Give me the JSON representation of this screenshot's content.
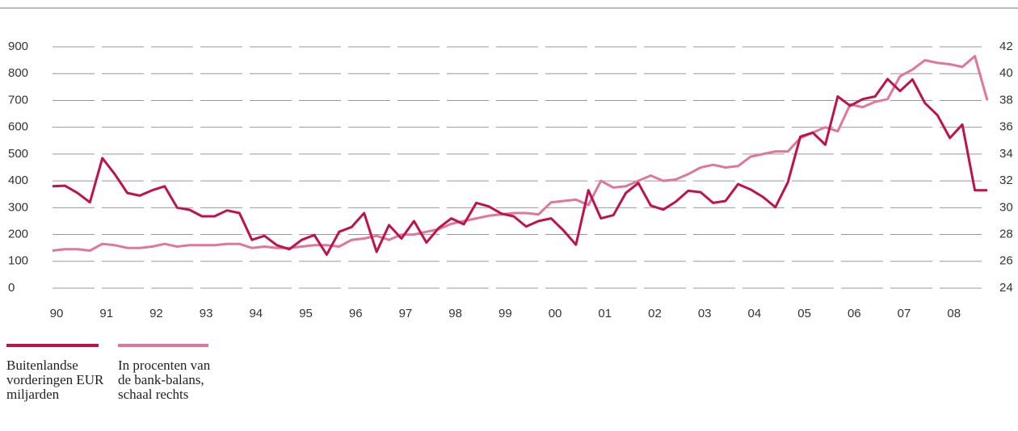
{
  "chart_data": {
    "type": "line",
    "categories": [
      "90",
      null,
      null,
      null,
      "91",
      null,
      null,
      null,
      "92",
      null,
      null,
      null,
      "93",
      null,
      null,
      null,
      "94",
      null,
      null,
      null,
      "95",
      null,
      null,
      null,
      "96",
      null,
      null,
      null,
      "97",
      null,
      null,
      null,
      "98",
      null,
      null,
      null,
      "99",
      null,
      null,
      null,
      "00",
      null,
      null,
      null,
      "01",
      null,
      null,
      null,
      "02",
      null,
      null,
      null,
      "03",
      null,
      null,
      null,
      "04",
      null,
      null,
      null,
      "05",
      null,
      null,
      null,
      "06",
      null,
      null,
      null,
      "07",
      null,
      null,
      null,
      "08",
      null,
      null,
      null
    ],
    "series": [
      {
        "name": "Buitenlandse vorderingen EUR miljarden",
        "color": "#c0114f",
        "values": [
          380,
          382,
          355,
          320,
          485,
          425,
          355,
          345,
          365,
          380,
          300,
          292,
          268,
          268,
          290,
          280,
          180,
          195,
          160,
          145,
          180,
          198,
          125,
          210,
          228,
          280,
          135,
          235,
          185,
          250,
          170,
          225,
          260,
          238,
          318,
          305,
          278,
          268,
          230,
          250,
          260,
          215,
          162,
          365,
          260,
          272,
          355,
          392,
          308,
          293,
          322,
          363,
          358,
          318,
          325,
          388,
          368,
          340,
          302,
          395,
          565,
          580,
          535,
          715,
          680,
          705,
          715,
          780,
          735,
          778,
          690,
          645,
          560,
          610,
          365,
          365
        ]
      },
      {
        "name": "In procenten van de bank-balans, schaal rechts",
        "color": "#e07799",
        "axis": "y2",
        "values": [
          26.8,
          26.9,
          26.9,
          26.8,
          27.3,
          27.2,
          27.0,
          27.0,
          27.1,
          27.3,
          27.1,
          27.2,
          27.2,
          27.2,
          27.3,
          27.3,
          27.0,
          27.1,
          27.0,
          27.0,
          27.1,
          27.2,
          27.2,
          27.1,
          27.6,
          27.7,
          27.9,
          27.6,
          28.0,
          28.0,
          28.2,
          28.4,
          28.8,
          29.0,
          29.2,
          29.4,
          29.5,
          29.6,
          29.6,
          29.5,
          30.4,
          30.5,
          30.6,
          30.2,
          32.0,
          31.5,
          31.6,
          32.0,
          32.4,
          32.0,
          32.1,
          32.5,
          33.0,
          33.2,
          33.0,
          33.1,
          33.8,
          34.0,
          34.2,
          34.2,
          35.2,
          35.6,
          36.0,
          35.7,
          37.7,
          37.5,
          37.9,
          38.1,
          39.8,
          40.3,
          41.0,
          40.8,
          40.7,
          40.5,
          41.3,
          38.0
        ]
      }
    ],
    "ylim": [
      0,
      900
    ],
    "yticks": [
      0,
      100,
      200,
      300,
      400,
      500,
      600,
      700,
      800,
      900
    ],
    "y2lim": [
      24,
      42
    ],
    "y2ticks": [
      24,
      26,
      28,
      30,
      32,
      34,
      36,
      38,
      40,
      42
    ],
    "grid": true
  }
}
